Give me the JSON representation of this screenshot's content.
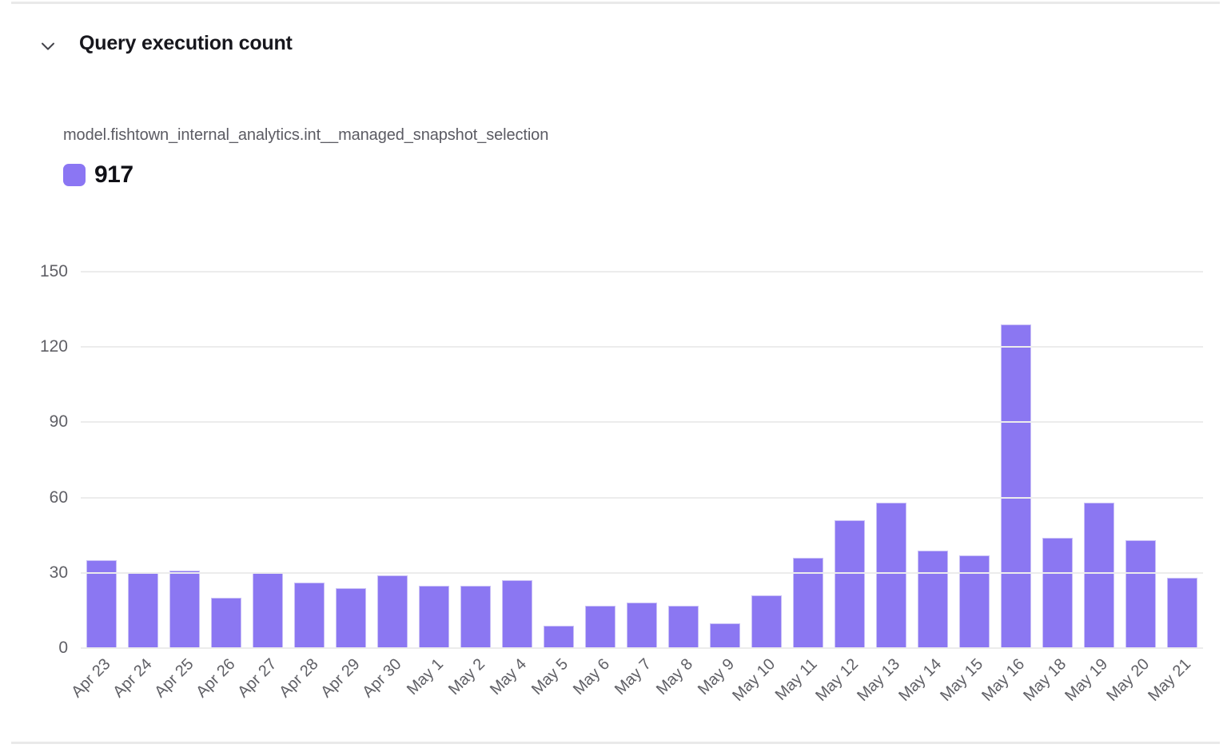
{
  "header": {
    "title": "Query execution count"
  },
  "series": {
    "name": "model.fishtown_internal_analytics.int__managed_snapshot_selection"
  },
  "legend": {
    "total": "917",
    "swatch_color": "#8b76f3"
  },
  "chart_data": {
    "type": "bar",
    "title": "Query execution count",
    "series_name": "model.fishtown_internal_analytics.int__managed_snapshot_selection",
    "legend_total": 917,
    "categories": [
      "Apr 23",
      "Apr 24",
      "Apr 25",
      "Apr 26",
      "Apr 27",
      "Apr 28",
      "Apr 29",
      "Apr 30",
      "May 1",
      "May 2",
      "May 4",
      "May 5",
      "May 6",
      "May 7",
      "May 8",
      "May 9",
      "May 10",
      "May 11",
      "May 12",
      "May 13",
      "May 14",
      "May 15",
      "May 16",
      "May 18",
      "May 19",
      "May 20",
      "May 21"
    ],
    "values": [
      35,
      30,
      31,
      20,
      30,
      26,
      24,
      29,
      25,
      25,
      27,
      9,
      17,
      18,
      17,
      10,
      21,
      36,
      51,
      58,
      39,
      37,
      129,
      44,
      58,
      43,
      28
    ],
    "bar_color": "#8b77f2",
    "bar_border_color": "#c9c0f6",
    "grid_color": "#ececec",
    "y_ticks": [
      0,
      30,
      60,
      90,
      120,
      150
    ],
    "ylim": [
      0,
      150
    ],
    "grid": true,
    "legend_position": "top-left",
    "x_label_rotation_deg": -45,
    "xlabel": "",
    "ylabel": ""
  }
}
